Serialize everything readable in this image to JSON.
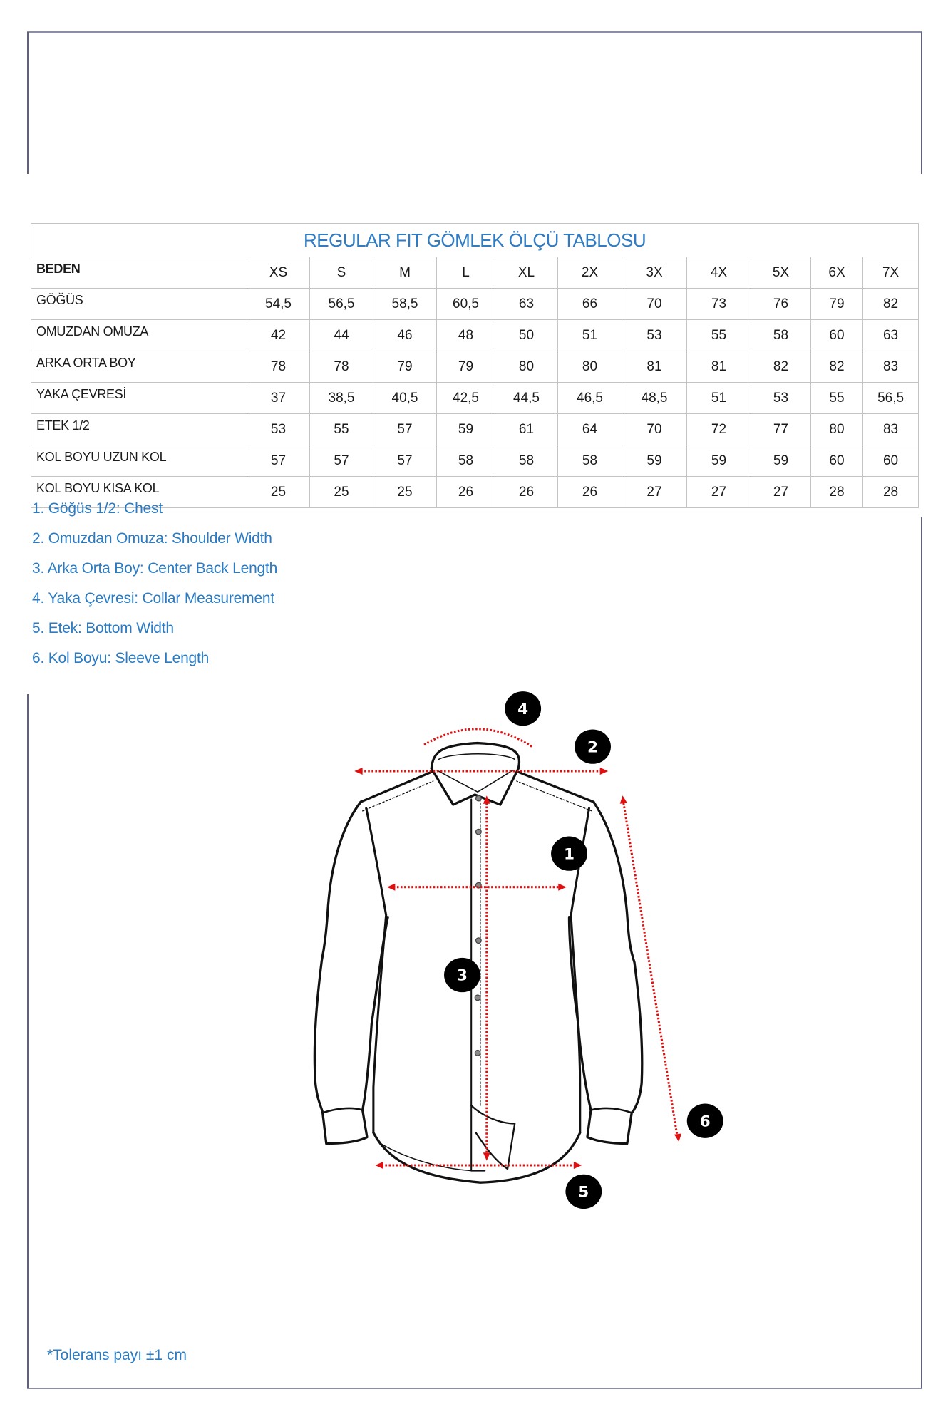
{
  "table": {
    "title": "REGULAR FIT GÖMLEK ÖLÇÜ TABLOSU",
    "header_label": "BEDEN",
    "sizes": [
      "XS",
      "S",
      "M",
      "L",
      "XL",
      "2X",
      "3X",
      "4X",
      "5X",
      "6X",
      "7X"
    ],
    "rows": [
      {
        "label": "GÖĞÜS",
        "values": [
          "54,5",
          "56,5",
          "58,5",
          "60,5",
          "63",
          "66",
          "70",
          "73",
          "76",
          "79",
          "82"
        ]
      },
      {
        "label": "OMUZDAN OMUZA",
        "values": [
          "42",
          "44",
          "46",
          "48",
          "50",
          "51",
          "53",
          "55",
          "58",
          "60",
          "63"
        ]
      },
      {
        "label": "ARKA ORTA BOY",
        "values": [
          "78",
          "78",
          "79",
          "79",
          "80",
          "80",
          "81",
          "81",
          "82",
          "82",
          "83"
        ]
      },
      {
        "label": "YAKA ÇEVRESİ",
        "values": [
          "37",
          "38,5",
          "40,5",
          "42,5",
          "44,5",
          "46,5",
          "48,5",
          "51",
          "53",
          "55",
          "56,5"
        ]
      },
      {
        "label": "ETEK 1/2",
        "values": [
          "53",
          "55",
          "57",
          "59",
          "61",
          "64",
          "70",
          "72",
          "77",
          "80",
          "83"
        ]
      },
      {
        "label": "KOL BOYU UZUN KOL",
        "values": [
          "57",
          "57",
          "57",
          "58",
          "58",
          "58",
          "59",
          "59",
          "59",
          "60",
          "60"
        ]
      },
      {
        "label": "KOL BOYU KISA KOL",
        "values": [
          "25",
          "25",
          "25",
          "26",
          "26",
          "26",
          "27",
          "27",
          "27",
          "28",
          "28"
        ]
      }
    ]
  },
  "legend": [
    "1. Göğüs 1/2: Chest",
    "2. Omuzdan Omuza: Shoulder Width",
    "3. Arka Orta Boy: Center Back Length",
    "4. Yaka Çevresi: Collar Measurement",
    "5. Etek: Bottom Width",
    "6. Kol Boyu: Sleeve Length"
  ],
  "diagram": {
    "badges": [
      "1",
      "2",
      "3",
      "4",
      "5",
      "6"
    ],
    "measure_color": "#e01010",
    "outline_color": "#111111"
  },
  "tolerance": "*Tolerans payı ±1 cm",
  "colors": {
    "accent": "#2a7bc3",
    "border": "#8b8da6",
    "grid": "#c4c4c4"
  }
}
